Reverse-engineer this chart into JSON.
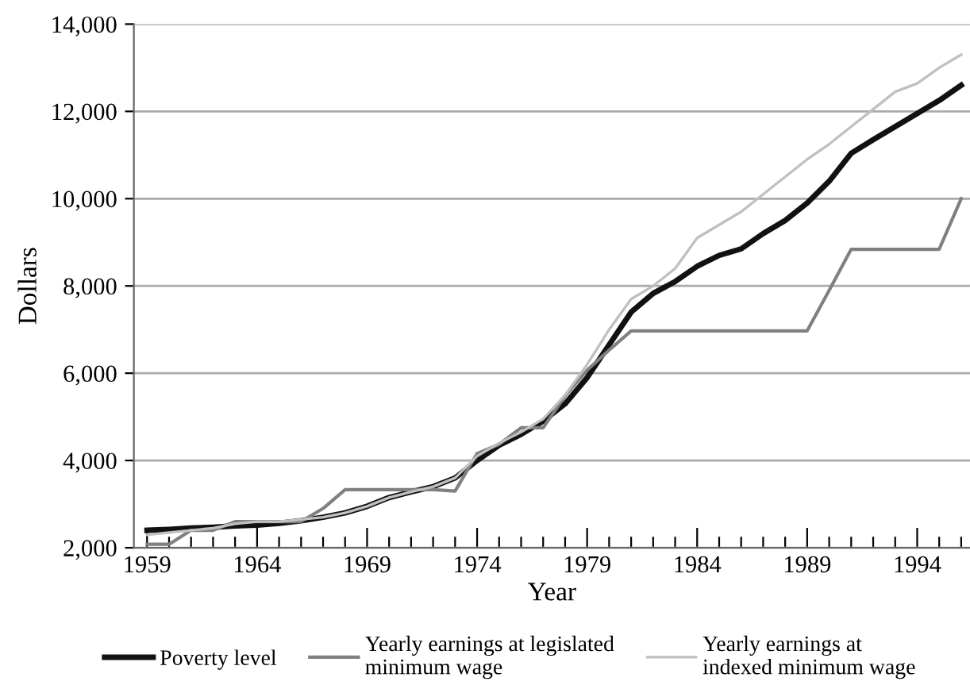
{
  "chart_data": {
    "type": "line",
    "xlabel": "Year",
    "ylabel": "Dollars",
    "xlim": [
      1958.4,
      1996.4
    ],
    "ylim": [
      2000,
      14000
    ],
    "yticks": [
      {
        "value": 2000,
        "label": "2,000"
      },
      {
        "value": 4000,
        "label": "4,000"
      },
      {
        "value": 6000,
        "label": "6,000"
      },
      {
        "value": 8000,
        "label": "8,000"
      },
      {
        "value": 10000,
        "label": "10,000"
      },
      {
        "value": 12000,
        "label": "12,000"
      },
      {
        "value": 14000,
        "label": "14,000"
      }
    ],
    "xticks": [
      1959,
      {
        "value": 1960,
        "label": null
      },
      {
        "value": 1961,
        "label": null
      },
      {
        "value": 1962,
        "label": null
      },
      {
        "value": 1963,
        "label": null
      },
      1964,
      {
        "value": 1965,
        "label": null
      },
      {
        "value": 1966,
        "label": null
      },
      {
        "value": 1967,
        "label": null
      },
      {
        "value": 1968,
        "label": null
      },
      1969,
      {
        "value": 1970,
        "label": null
      },
      {
        "value": 1971,
        "label": null
      },
      {
        "value": 1972,
        "label": null
      },
      {
        "value": 1973,
        "label": null
      },
      1974,
      {
        "value": 1975,
        "label": null
      },
      {
        "value": 1976,
        "label": null
      },
      {
        "value": 1977,
        "label": null
      },
      {
        "value": 1978,
        "label": null
      },
      1979,
      {
        "value": 1980,
        "label": null
      },
      {
        "value": 1981,
        "label": null
      },
      {
        "value": 1982,
        "label": null
      },
      {
        "value": 1983,
        "label": null
      },
      1984,
      {
        "value": 1985,
        "label": null
      },
      {
        "value": 1986,
        "label": null
      },
      {
        "value": 1987,
        "label": null
      },
      {
        "value": 1988,
        "label": null
      },
      1989,
      {
        "value": 1990,
        "label": null
      },
      {
        "value": 1991,
        "label": null
      },
      {
        "value": 1992,
        "label": null
      },
      {
        "value": 1993,
        "label": null
      },
      1994,
      {
        "value": 1995,
        "label": null
      },
      {
        "value": 1996,
        "label": null
      }
    ],
    "grid": "y",
    "legend": "bottom",
    "marker": "none",
    "line_style": "solid",
    "x": [
      1959,
      1960,
      1961,
      1962,
      1963,
      1964,
      1965,
      1966,
      1967,
      1968,
      1969,
      1970,
      1971,
      1972,
      1973,
      1974,
      1975,
      1976,
      1977,
      1978,
      1979,
      1980,
      1981,
      1982,
      1983,
      1984,
      1985,
      1986,
      1987,
      1988,
      1989,
      1990,
      1991,
      1992,
      1993,
      1994,
      1995,
      1996
    ],
    "series": [
      {
        "name": "Poverty level",
        "color": "#111111",
        "values": [
          2400,
          2420,
          2450,
          2470,
          2500,
          2520,
          2560,
          2620,
          2700,
          2800,
          2950,
          3150,
          3280,
          3400,
          3600,
          4000,
          4350,
          4600,
          4900,
          5300,
          5900,
          6650,
          7400,
          7830,
          8100,
          8450,
          8700,
          8850,
          9200,
          9500,
          9900,
          10400,
          11040,
          11350,
          11650,
          11950,
          12250,
          12600
        ]
      },
      {
        "name": "Yearly earnings at legislated\nminimum wage",
        "color": "#808080",
        "values": [
          2080,
          2080,
          2400,
          2400,
          2600,
          2600,
          2600,
          2600,
          2900,
          3330,
          3330,
          3330,
          3330,
          3330,
          3300,
          4160,
          4370,
          4750,
          4750,
          5480,
          6070,
          6530,
          6970,
          6970,
          6970,
          6970,
          6970,
          6970,
          6970,
          6970,
          6970,
          7900,
          8840,
          8840,
          8840,
          8840,
          8840,
          10000
        ]
      },
      {
        "name": "Yearly earnings at\nindexed minimum wage",
        "color": "#c0c0c0",
        "values": [
          2300,
          2350,
          2400,
          2450,
          2550,
          2600,
          2600,
          2650,
          2700,
          2800,
          2950,
          3150,
          3280,
          3400,
          3600,
          4100,
          4400,
          4650,
          4950,
          5500,
          6200,
          7000,
          7700,
          8000,
          8400,
          9100,
          9400,
          9700,
          10100,
          10500,
          10900,
          11250,
          11650,
          12050,
          12450,
          12640,
          13000,
          13300
        ]
      }
    ]
  }
}
